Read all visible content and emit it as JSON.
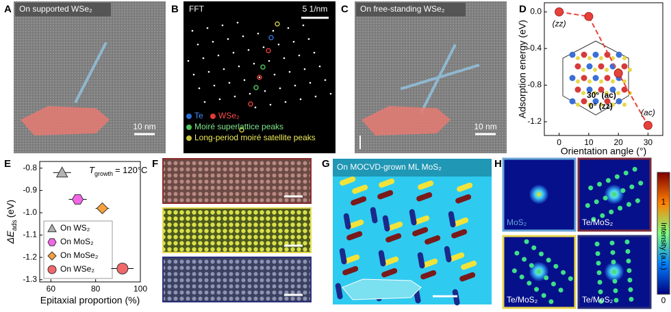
{
  "panel_labels": [
    "A",
    "B",
    "C",
    "D",
    "E",
    "F",
    "G",
    "H"
  ],
  "panel_a": {
    "caption": "On supported WSe₂",
    "scale_bar": "10 nm"
  },
  "panel_b": {
    "title": "FFT",
    "scale_bar": "5 1/nm",
    "legend": [
      "Te",
      "WSe₂",
      "Moiré superlattice peaks",
      "Long-period moiré satellite peaks"
    ]
  },
  "panel_c": {
    "caption": "On free-standing WSe₂",
    "scale_bar": "10 nm"
  },
  "panel_g": {
    "caption": "On MOCVD-grown ML MoS₂"
  },
  "panel_h": {
    "tiles": [
      "MoS₂",
      "Te/MoS₂",
      "Te/MoS₂",
      "Te/MoS₂"
    ],
    "colorbar": {
      "title": "Intensity (a.u.)",
      "max": 1,
      "min": 0
    }
  },
  "chart_data": [
    {
      "type": "line",
      "x_label": "Orientation angle (°)",
      "y_label": "Adsorption energy (eV)",
      "x": [
        0,
        10,
        20,
        30
      ],
      "values": [
        0.0,
        -0.05,
        -0.67,
        -1.24
      ],
      "color": "#e8413a",
      "xlim": [
        -5,
        35
      ],
      "xticks": [
        0,
        10,
        20,
        30
      ],
      "ylim": [
        -1.35,
        0.1
      ],
      "yticks": [
        {
          "value": 0,
          "label": "0.0"
        },
        -0.4,
        -0.8,
        -1.2
      ],
      "annotations": [
        "(zz)",
        "(ac)"
      ],
      "inset_labels": [
        "30° (ac)",
        "0° (zz)"
      ]
    },
    {
      "type": "scatter",
      "x_label": "Epitaxial proportion (%)",
      "y_label": {
        "symbol": "ΔE",
        "subscript": "ads",
        "unit": "(eV)"
      },
      "annotation": {
        "symbol": "T",
        "subscript": "growth",
        "text": "= 120°C"
      },
      "xlim": [
        55,
        100
      ],
      "xticks": [
        60,
        80,
        100
      ],
      "ylim": [
        -1.31,
        -0.77
      ],
      "yticks": [
        -0.8,
        -0.9,
        {
          "value": -1,
          "label": "-1.0"
        },
        -1.1,
        -1.2,
        -1.3
      ],
      "series": [
        {
          "name": "On WS₂",
          "color": "#b3b3b3",
          "marker": "triangle",
          "x": [
            65
          ],
          "xerr": [
            4
          ],
          "values": [
            -0.82
          ]
        },
        {
          "name": "On MoS₂",
          "color": "#f266e8",
          "marker": "hexagon",
          "x": [
            72
          ],
          "xerr": [
            4
          ],
          "values": [
            -0.94
          ]
        },
        {
          "name": "On MoSe₂",
          "color": "#f5a03c",
          "marker": "diamond",
          "x": [
            83
          ],
          "xerr": [
            3
          ],
          "values": [
            -0.98
          ]
        },
        {
          "name": "On WSe₂",
          "color": "#f0686a",
          "marker": "circle",
          "x": [
            92
          ],
          "xerr": [
            5
          ],
          "values": [
            -1.25
          ]
        }
      ]
    }
  ]
}
